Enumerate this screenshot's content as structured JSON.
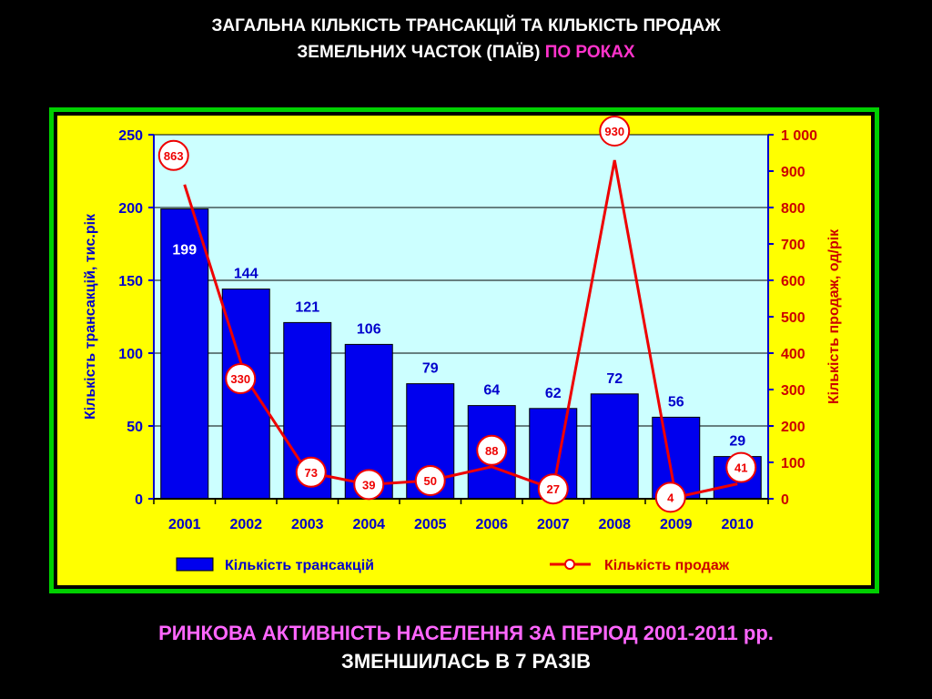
{
  "slide": {
    "title_line1": "ЗАГАЛЬНА КІЛЬКІСТЬ ТРАНСАКЦІЙ ТА КІЛЬКІСТЬ ПРОДАЖ",
    "title_line2_main": "ЗЕМЕЛЬНИХ ЧАСТОК (ПАЇВ)",
    "title_line2_highlight": "ПО РОКАХ",
    "footer_line1": "РИНКОВА АКТИВНІСТЬ НАСЕЛЕННЯ ЗА ПЕРІОД 2001-2011 рр.",
    "footer_line2": "ЗМЕНШИЛАСЬ В 7 РАЗІВ"
  },
  "colors": {
    "bar": "#0000ee",
    "line": "#ee0000",
    "plot_bg": "#ccffff",
    "panel_bg": "#ffff00",
    "frame": "#00d000",
    "left_axis": "#0000cc",
    "right_axis": "#cc0000"
  },
  "chart_data": {
    "type": "bar",
    "categories": [
      "2001",
      "2002",
      "2003",
      "2004",
      "2005",
      "2006",
      "2007",
      "2008",
      "2009",
      "2010"
    ],
    "series": [
      {
        "name": "Кількість трансакцій",
        "type": "bar",
        "axis": "left",
        "values": [
          199,
          144,
          121,
          106,
          79,
          64,
          62,
          72,
          56,
          29
        ]
      },
      {
        "name": "Кількість продаж",
        "type": "line",
        "axis": "right",
        "values": [
          863,
          330,
          73,
          39,
          50,
          88,
          27,
          930,
          4,
          41
        ]
      }
    ],
    "ylabel": "Кількість трансакцій, тис.рік",
    "y2label": "Кількість продаж, од/рік",
    "ylim": [
      0,
      250
    ],
    "y2lim": [
      0,
      1000
    ],
    "yticks": [
      "0",
      "50",
      "100",
      "150",
      "200",
      "250"
    ],
    "y2ticks": [
      "0",
      "100",
      "200",
      "300",
      "400",
      "500",
      "600",
      "700",
      "800",
      "900",
      "1 000"
    ],
    "grid": true,
    "legend": "bottom"
  }
}
